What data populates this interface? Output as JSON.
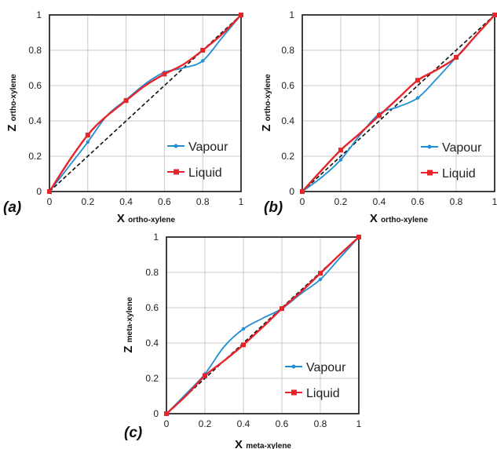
{
  "chart_data": [
    {
      "type": "line",
      "panel_label": "(a)",
      "xlabel": {
        "main": "X",
        "sub": "ortho-xylene"
      },
      "ylabel": {
        "main": "Z",
        "sub": "ortho-xylene"
      },
      "xlim": [
        0,
        1
      ],
      "ylim": [
        0,
        1
      ],
      "x_ticks": [
        "0",
        "0.2",
        "0.4",
        "0.6",
        "0.8",
        "1"
      ],
      "y_ticks": [
        "0",
        "0.2",
        "0.4",
        "0.6",
        "0.8",
        "1"
      ],
      "grid": true,
      "legend_position": "lower-right",
      "diagonal": true,
      "series": [
        {
          "name": "Vapour",
          "color": "#1f8fd6",
          "marker": "dot",
          "x": [
            0,
            0.1,
            0.2,
            0.3,
            0.4,
            0.5,
            0.6,
            0.7,
            0.8,
            0.9,
            1
          ],
          "y": [
            0,
            0.14,
            0.28,
            0.43,
            0.52,
            0.61,
            0.675,
            0.7,
            0.74,
            0.87,
            1
          ]
        },
        {
          "name": "Liquid",
          "color": "#e8242b",
          "marker": "square",
          "x": [
            0,
            0.1,
            0.2,
            0.28,
            0.4,
            0.5,
            0.6,
            0.7,
            0.8,
            0.9,
            1
          ],
          "y": [
            0,
            0.17,
            0.32,
            0.41,
            0.515,
            0.6,
            0.665,
            0.72,
            0.8,
            0.89,
            1
          ]
        }
      ]
    },
    {
      "type": "line",
      "panel_label": "(b)",
      "xlabel": {
        "main": "X",
        "sub": "ortho-xylene"
      },
      "ylabel": {
        "main": "Z",
        "sub": "ortho-xylene"
      },
      "xlim": [
        0,
        1
      ],
      "ylim": [
        0,
        1
      ],
      "x_ticks": [
        "0",
        "0.2",
        "0.4",
        "0.6",
        "0.8",
        "1"
      ],
      "y_ticks": [
        "0",
        "0.2",
        "0.4",
        "0.6",
        "0.8",
        "1"
      ],
      "grid": true,
      "legend_position": "lower-right",
      "diagonal": true,
      "series": [
        {
          "name": "Vapour",
          "color": "#1f8fd6",
          "marker": "dot",
          "x": [
            0,
            0.1,
            0.2,
            0.3,
            0.4,
            0.5,
            0.6,
            0.7,
            0.8,
            0.9,
            1
          ],
          "y": [
            0,
            0.08,
            0.18,
            0.32,
            0.44,
            0.48,
            0.53,
            0.64,
            0.76,
            0.88,
            1
          ]
        },
        {
          "name": "Liquid",
          "color": "#e8242b",
          "marker": "square",
          "x": [
            0,
            0.1,
            0.2,
            0.3,
            0.4,
            0.5,
            0.6,
            0.7,
            0.8,
            0.9,
            1
          ],
          "y": [
            0,
            0.12,
            0.235,
            0.33,
            0.43,
            0.53,
            0.63,
            0.69,
            0.76,
            0.88,
            1
          ]
        }
      ]
    },
    {
      "type": "line",
      "panel_label": "(c)",
      "xlabel": {
        "main": "X",
        "sub": "meta-xylene"
      },
      "ylabel": {
        "main": "Z",
        "sub": "meta-xylene"
      },
      "xlim": [
        0,
        1
      ],
      "ylim": [
        0,
        1
      ],
      "x_ticks": [
        "0",
        "0.2",
        "0.4",
        "0.6",
        "0.8",
        "1"
      ],
      "y_ticks": [
        "0",
        "0.2",
        "0.4",
        "0.6",
        "0.8",
        "1"
      ],
      "grid": true,
      "legend_position": "lower-right",
      "diagonal": true,
      "series": [
        {
          "name": "Vapour",
          "color": "#1f8fd6",
          "marker": "dot",
          "x": [
            0,
            0.1,
            0.2,
            0.3,
            0.4,
            0.5,
            0.6,
            0.7,
            0.8,
            0.9,
            1
          ],
          "y": [
            0,
            0.11,
            0.225,
            0.38,
            0.48,
            0.54,
            0.595,
            0.68,
            0.76,
            0.88,
            1
          ]
        },
        {
          "name": "Liquid",
          "color": "#e8242b",
          "marker": "square",
          "x": [
            0,
            0.1,
            0.2,
            0.3,
            0.4,
            0.5,
            0.6,
            0.7,
            0.8,
            0.9,
            1
          ],
          "y": [
            0,
            0.1,
            0.215,
            0.3,
            0.39,
            0.49,
            0.595,
            0.69,
            0.795,
            0.9,
            1
          ]
        }
      ]
    }
  ]
}
